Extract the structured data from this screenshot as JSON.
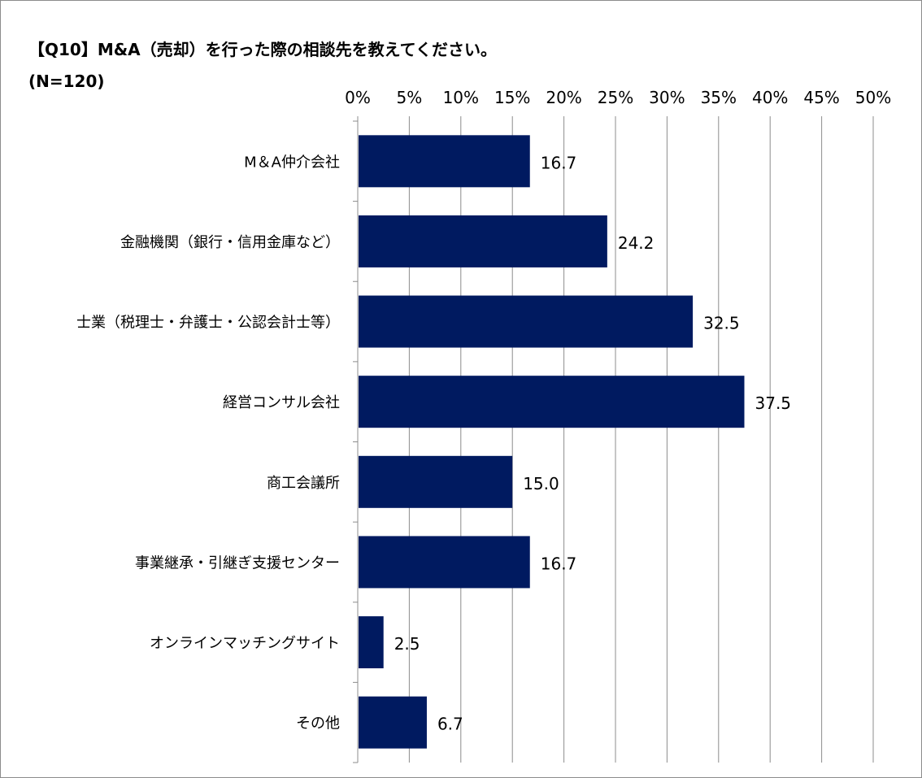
{
  "chart_data": {
    "type": "bar",
    "orientation": "horizontal",
    "title": "【Q10】M&A（売却）を行った際の相談先を教えてください。",
    "subtitle": "(N=120)",
    "categories": [
      "M＆A仲介会社",
      "金融機関（銀行・信用金庫など）",
      "士業（税理士・弁護士・公認会計士等）",
      "経営コンサル会社",
      "商工会議所",
      "事業継承・引継ぎ支援センター",
      "オンラインマッチングサイト",
      "その他"
    ],
    "values": [
      16.7,
      24.2,
      32.5,
      37.5,
      15.0,
      16.7,
      2.5,
      6.7
    ],
    "value_labels": [
      "16.7",
      "24.2",
      "32.5",
      "37.5",
      "15.0",
      "16.7",
      "2.5",
      "6.7"
    ],
    "xlim": [
      0,
      50
    ],
    "xticks": [
      "0%",
      "5%",
      "10%",
      "15%",
      "20%",
      "25%",
      "30%",
      "35%",
      "40%",
      "45%",
      "50%"
    ],
    "x_axis_position": "top",
    "grid": true,
    "legend": false,
    "bar_color": "#001a60",
    "grid_color": "#8c8c8c"
  }
}
